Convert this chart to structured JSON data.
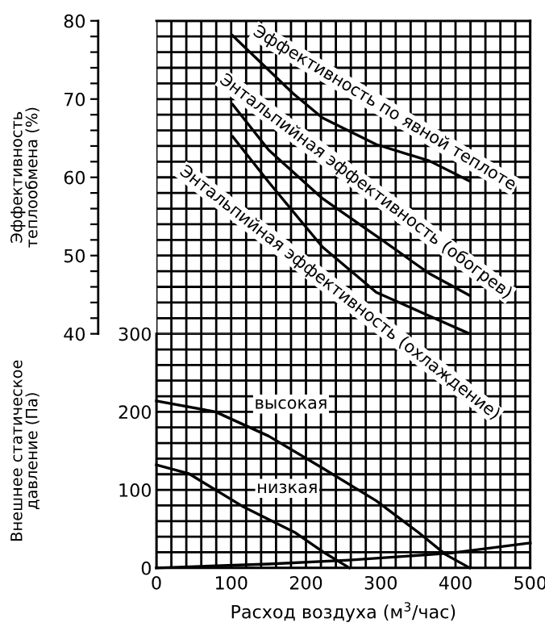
{
  "chart_data": [
    {
      "type": "line",
      "ylabel": "Эффективность\nтеплообмена (%)",
      "tick_labels": "y",
      "grid": true,
      "legend": false,
      "marker": "none",
      "line_style": "solid",
      "xlim": [
        0,
        500
      ],
      "ylim": [
        40,
        80
      ],
      "xticks": [
        0,
        {
          "value": 20,
          "label": null
        },
        {
          "value": 40,
          "label": null
        },
        {
          "value": 60,
          "label": null
        },
        {
          "value": 80,
          "label": null
        },
        100,
        {
          "value": 120,
          "label": null
        },
        {
          "value": 140,
          "label": null
        },
        {
          "value": 160,
          "label": null
        },
        {
          "value": 180,
          "label": null
        },
        200,
        {
          "value": 220,
          "label": null
        },
        {
          "value": 240,
          "label": null
        },
        {
          "value": 260,
          "label": null
        },
        {
          "value": 280,
          "label": null
        },
        300,
        {
          "value": 320,
          "label": null
        },
        {
          "value": 340,
          "label": null
        },
        {
          "value": 360,
          "label": null
        },
        {
          "value": 380,
          "label": null
        },
        400,
        {
          "value": 420,
          "label": null
        },
        {
          "value": 440,
          "label": null
        },
        {
          "value": 460,
          "label": null
        },
        {
          "value": 480,
          "label": null
        },
        500
      ],
      "yticks": [
        40,
        {
          "value": 42,
          "label": null
        },
        {
          "value": 44,
          "label": null
        },
        {
          "value": 46,
          "label": null
        },
        {
          "value": 48,
          "label": null
        },
        50,
        {
          "value": 52,
          "label": null
        },
        {
          "value": 54,
          "label": null
        },
        {
          "value": 56,
          "label": null
        },
        {
          "value": 58,
          "label": null
        },
        60,
        {
          "value": 62,
          "label": null
        },
        {
          "value": 64,
          "label": null
        },
        {
          "value": 66,
          "label": null
        },
        {
          "value": 68,
          "label": null
        },
        70,
        {
          "value": 72,
          "label": null
        },
        {
          "value": 74,
          "label": null
        },
        {
          "value": 76,
          "label": null
        },
        {
          "value": 78,
          "label": null
        },
        80
      ],
      "series": [
        {
          "name": "Эффективность по явной теплоте",
          "color": "#000000",
          "x": [
            102,
            183,
            222,
            294,
            365,
            419
          ],
          "values": [
            78.1,
            70.7,
            67.6,
            64.2,
            62.1,
            59.5
          ]
        },
        {
          "name": "Энтальпийная эффективность (обогрев)",
          "color": "#000000",
          "x": [
            102,
            150,
            222,
            294,
            365,
            419
          ],
          "values": [
            69.3,
            63.5,
            57.3,
            52.5,
            47.7,
            44.9
          ]
        },
        {
          "name": "Энтальпийная эффективность (охлаждение)",
          "color": "#000000",
          "x": [
            102,
            150,
            222,
            294,
            360,
            419
          ],
          "values": [
            65.2,
            59.4,
            51.1,
            45.3,
            42.5,
            40
          ]
        }
      ]
    },
    {
      "type": "line",
      "xlabel": "Расход воздуха (м$^{3}$/час)",
      "ylabel": "Внешнее статическое\nдавление (Па)",
      "grid": true,
      "legend": false,
      "marker": "none",
      "line_style": "solid",
      "xlim": [
        0,
        500
      ],
      "ylim": [
        0,
        300
      ],
      "xticks": [
        0,
        {
          "value": 20,
          "label": null
        },
        {
          "value": 40,
          "label": null
        },
        {
          "value": 60,
          "label": null
        },
        {
          "value": 80,
          "label": null
        },
        100,
        {
          "value": 120,
          "label": null
        },
        {
          "value": 140,
          "label": null
        },
        {
          "value": 160,
          "label": null
        },
        {
          "value": 180,
          "label": null
        },
        200,
        {
          "value": 220,
          "label": null
        },
        {
          "value": 240,
          "label": null
        },
        {
          "value": 260,
          "label": null
        },
        {
          "value": 280,
          "label": null
        },
        300,
        {
          "value": 320,
          "label": null
        },
        {
          "value": 340,
          "label": null
        },
        {
          "value": 360,
          "label": null
        },
        {
          "value": 380,
          "label": null
        },
        400,
        {
          "value": 420,
          "label": null
        },
        {
          "value": 440,
          "label": null
        },
        {
          "value": 460,
          "label": null
        },
        {
          "value": 480,
          "label": null
        },
        500
      ],
      "yticks": [
        0,
        {
          "value": 20,
          "label": null
        },
        {
          "value": 40,
          "label": null
        },
        {
          "value": 60,
          "label": null
        },
        {
          "value": 80,
          "label": null
        },
        100,
        {
          "value": 120,
          "label": null
        },
        {
          "value": 140,
          "label": null
        },
        {
          "value": 160,
          "label": null
        },
        {
          "value": 180,
          "label": null
        },
        200,
        {
          "value": 220,
          "label": null
        },
        {
          "value": 240,
          "label": null
        },
        {
          "value": 260,
          "label": null
        },
        {
          "value": 280,
          "label": null
        },
        300
      ],
      "series": [
        {
          "name": "высокая",
          "color": "#000000",
          "x": [
            0,
            79,
            150,
            222,
            294,
            351,
            387,
            419
          ],
          "values": [
            214,
            200,
            169,
            128,
            86,
            45,
            17,
            0
          ]
        },
        {
          "name": "низкая",
          "color": "#000000",
          "x": [
            0,
            43,
            115,
            186,
            222,
            258
          ],
          "values": [
            132,
            121,
            79,
            45,
            21,
            0
          ]
        },
        {
          "color": "#000000",
          "x": [
            0,
            150,
            258,
            394,
            500
          ],
          "values": [
            0,
            5,
            10,
            19,
            32
          ]
        }
      ]
    }
  ]
}
